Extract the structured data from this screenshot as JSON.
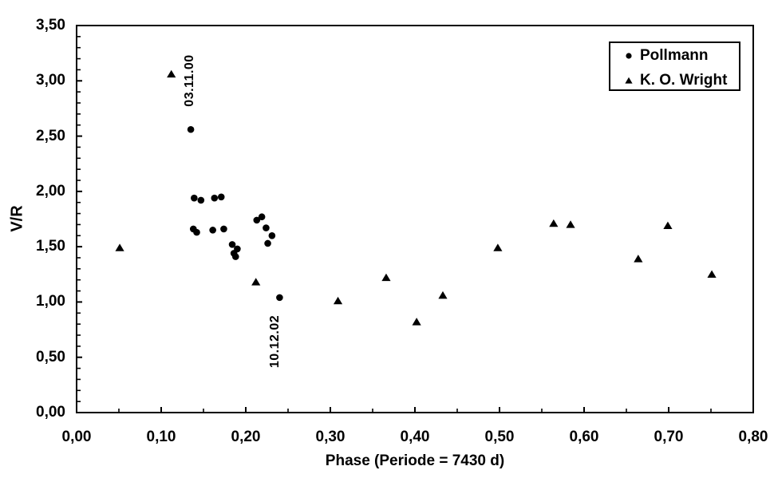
{
  "figure": {
    "background_color": "#ffffff",
    "foreground_color": "#000000"
  },
  "chart_data": {
    "type": "scatter",
    "title": "",
    "xlabel": "Phase (Periode = 7430 d)",
    "ylabel": "V/R",
    "xlim": [
      0,
      0.8
    ],
    "ylim": [
      0,
      3.5
    ],
    "grid": false,
    "legend_position": "top-right",
    "x_minor_tick_step": 0.05,
    "x_major_tick_step": 0.1,
    "y_minor_tick_step": 0.1,
    "y_major_tick_step": 0.5,
    "x_tick_labels": [
      {
        "value": 0.0,
        "label": "0,00"
      },
      {
        "value": 0.1,
        "label": "0,10"
      },
      {
        "value": 0.2,
        "label": "0,20"
      },
      {
        "value": 0.3,
        "label": "0,30"
      },
      {
        "value": 0.4,
        "label": "0,40"
      },
      {
        "value": 0.5,
        "label": "0,50"
      },
      {
        "value": 0.6,
        "label": "0,60"
      },
      {
        "value": 0.7,
        "label": "0,70"
      },
      {
        "value": 0.8,
        "label": "0,80"
      }
    ],
    "y_tick_labels": [
      {
        "value": 0.0,
        "label": "0,00"
      },
      {
        "value": 0.5,
        "label": "0,50"
      },
      {
        "value": 1.0,
        "label": "1,00"
      },
      {
        "value": 1.5,
        "label": "1,50"
      },
      {
        "value": 2.0,
        "label": "2,00"
      },
      {
        "value": 2.5,
        "label": "2,50"
      },
      {
        "value": 3.0,
        "label": "3,00"
      },
      {
        "value": 3.5,
        "label": "3,50"
      }
    ],
    "series": [
      {
        "name": "Pollmann",
        "marker": "circle",
        "color": "#000000",
        "points": [
          [
            0.135,
            2.56
          ],
          [
            0.139,
            1.94
          ],
          [
            0.147,
            1.92
          ],
          [
            0.163,
            1.94
          ],
          [
            0.171,
            1.95
          ],
          [
            0.138,
            1.66
          ],
          [
            0.142,
            1.63
          ],
          [
            0.161,
            1.65
          ],
          [
            0.174,
            1.66
          ],
          [
            0.184,
            1.52
          ],
          [
            0.19,
            1.48
          ],
          [
            0.186,
            1.44
          ],
          [
            0.188,
            1.41
          ],
          [
            0.213,
            1.74
          ],
          [
            0.219,
            1.77
          ],
          [
            0.224,
            1.67
          ],
          [
            0.231,
            1.6
          ],
          [
            0.226,
            1.53
          ],
          [
            0.24,
            1.04
          ]
        ]
      },
      {
        "name": "K. O. Wright",
        "marker": "triangle",
        "color": "#000000",
        "points": [
          [
            0.051,
            1.49
          ],
          [
            0.112,
            3.06
          ],
          [
            0.212,
            1.18
          ],
          [
            0.309,
            1.01
          ],
          [
            0.366,
            1.22
          ],
          [
            0.402,
            0.82
          ],
          [
            0.433,
            1.06
          ],
          [
            0.498,
            1.49
          ],
          [
            0.564,
            1.71
          ],
          [
            0.584,
            1.7
          ],
          [
            0.664,
            1.39
          ],
          [
            0.699,
            1.69
          ],
          [
            0.751,
            1.25
          ]
        ]
      }
    ],
    "annotations": [
      {
        "text": "03.11.00",
        "phase": 0.134,
        "vr": 3.0,
        "rotation_deg": -90
      },
      {
        "text": "10.12.02",
        "phase": 0.235,
        "vr": 0.645,
        "rotation_deg": -90
      }
    ]
  }
}
